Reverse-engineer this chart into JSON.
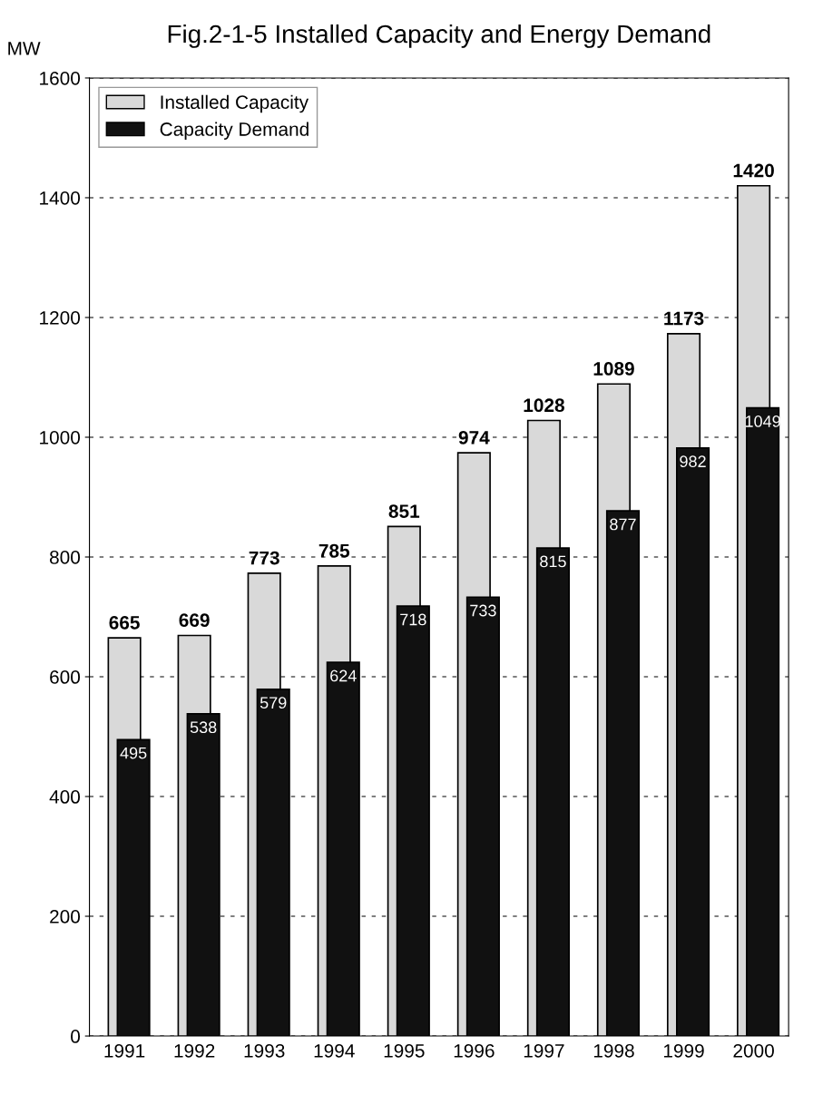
{
  "chart_data": {
    "type": "bar",
    "title": "Fig.2-1-5 Installed Capacity and Energy Demand",
    "ylabel": "MW",
    "categories": [
      "1991",
      "1992",
      "1993",
      "1994",
      "1995",
      "1996",
      "1997",
      "1998",
      "1999",
      "2000"
    ],
    "series": [
      {
        "name": "Installed Capacity",
        "color": "#d9d9d9",
        "values": [
          665,
          669,
          773,
          785,
          851,
          974,
          1028,
          1089,
          1173,
          1420
        ]
      },
      {
        "name": "Capacity Demand",
        "color": "#111111",
        "values": [
          495,
          538,
          579,
          624,
          718,
          733,
          815,
          877,
          982,
          1049
        ]
      }
    ],
    "ylim": [
      0,
      1600
    ],
    "yticks": [
      0,
      200,
      400,
      600,
      800,
      1000,
      1200,
      1400,
      1600
    ],
    "grid": "y",
    "legend": "top left",
    "data_labels": true
  }
}
